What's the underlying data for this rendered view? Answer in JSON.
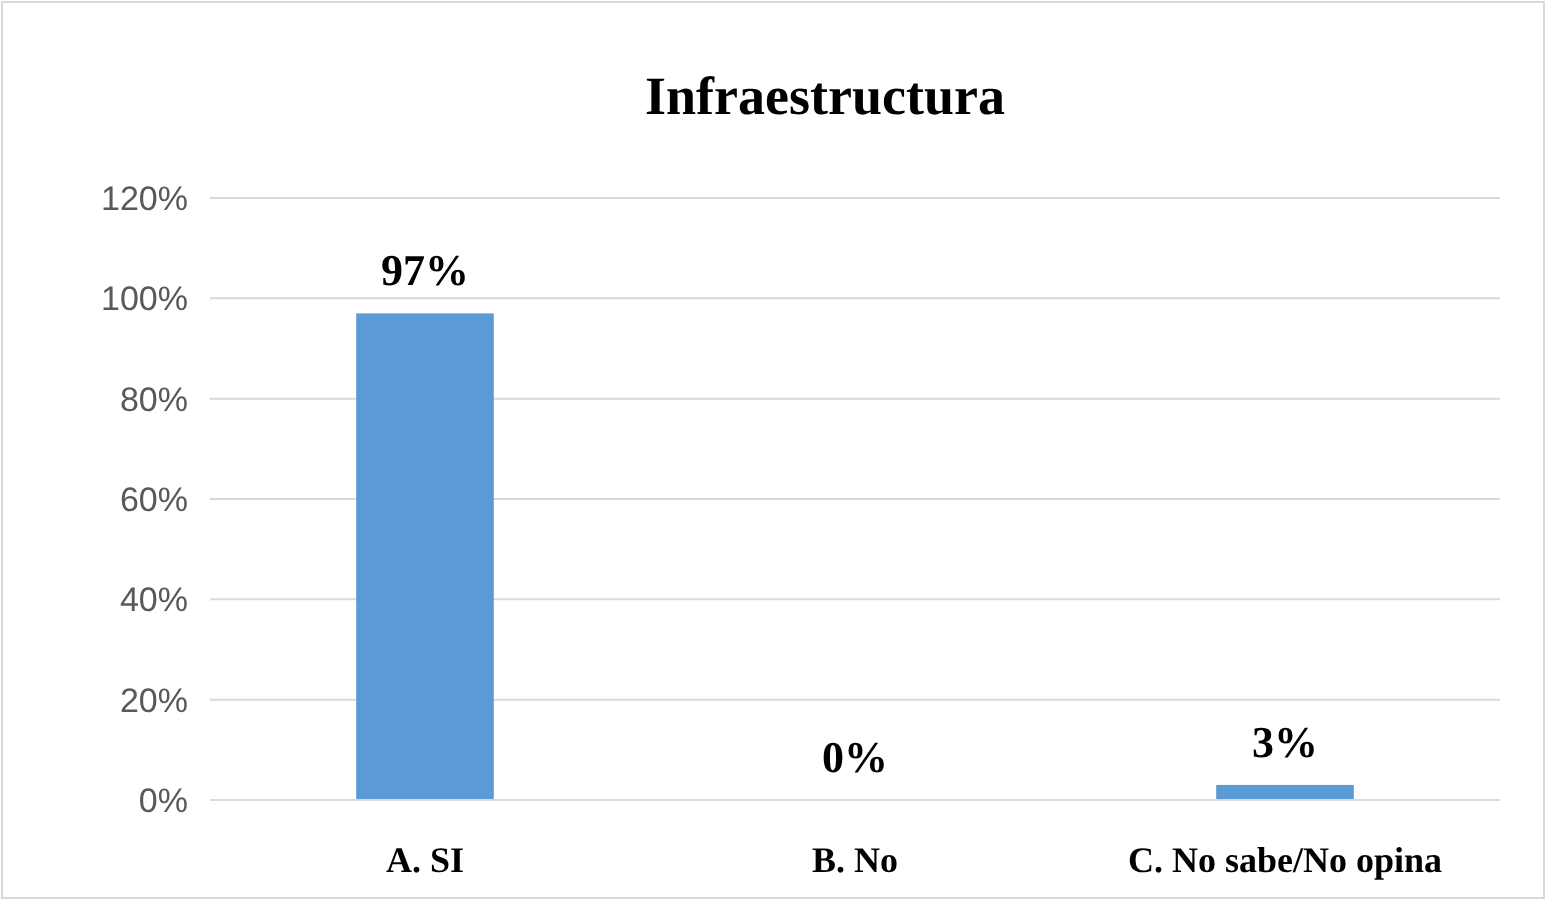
{
  "chart_data": {
    "type": "bar",
    "title": "Infraestructura",
    "categories": [
      "A. SI",
      "B. No",
      "C. No sabe/No opina"
    ],
    "values": [
      97,
      0,
      3
    ],
    "value_labels": [
      "97%",
      "0%",
      "3%"
    ],
    "color": "#5b9bd5",
    "ylim": [
      0,
      120
    ],
    "yticks": [
      {
        "value": 0,
        "label": "0%"
      },
      {
        "value": 20,
        "label": "20%"
      },
      {
        "value": 40,
        "label": "40%"
      },
      {
        "value": 60,
        "label": "60%"
      },
      {
        "value": 80,
        "label": "80%"
      },
      {
        "value": 100,
        "label": "100%"
      },
      {
        "value": 120,
        "label": "120%"
      }
    ],
    "grid": "y"
  }
}
